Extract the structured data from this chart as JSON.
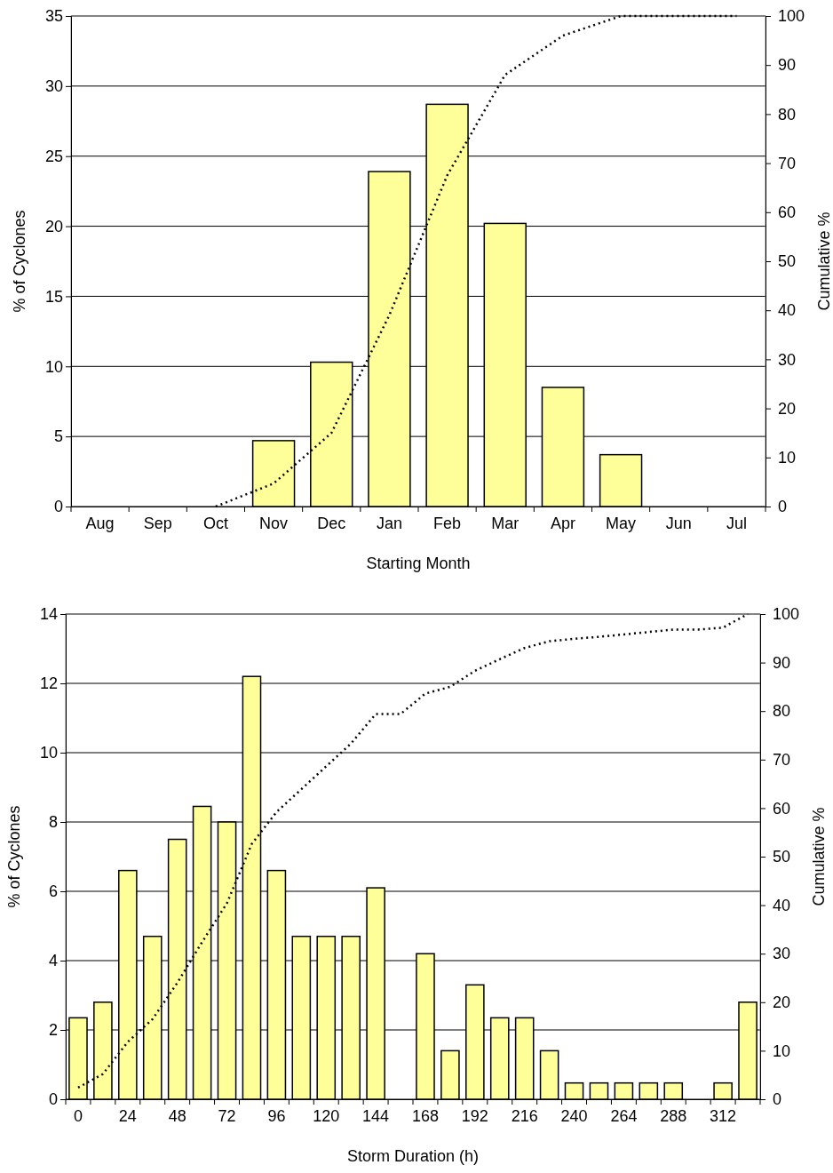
{
  "chart_data": [
    {
      "type": "bar",
      "xlabel": "Starting Month",
      "ylabel": "% of Cyclones",
      "y2label": "Cumulative %",
      "categories": [
        "Aug",
        "Sep",
        "Oct",
        "Nov",
        "Dec",
        "Jan",
        "Feb",
        "Mar",
        "Apr",
        "May",
        "Jun",
        "Jul"
      ],
      "series": [
        {
          "color": "#ffff99",
          "values": [
            null,
            null,
            null,
            4.7,
            10.3,
            23.9,
            28.7,
            20.2,
            8.5,
            3.7,
            null,
            null
          ]
        },
        {
          "type": "line",
          "axis": "y2",
          "color": "#000000",
          "line_style": "dotted",
          "values": [
            null,
            null,
            0,
            4.7,
            15,
            39,
            67.5,
            88,
            96,
            100,
            100,
            100
          ]
        }
      ],
      "ylim": [
        0,
        35
      ],
      "yticks": [
        0,
        5,
        10,
        15,
        20,
        25,
        30,
        35
      ],
      "y2lim": [
        0,
        100
      ],
      "y2ticks": [
        0,
        10,
        20,
        30,
        40,
        50,
        60,
        70,
        80,
        90,
        100
      ],
      "grid": "y",
      "marker": "none"
    },
    {
      "type": "bar",
      "xlabel": "Storm Duration (h)",
      "ylabel": "% of Cyclones",
      "y2label": "Cumulative %",
      "categories": [
        "0",
        null,
        "24",
        null,
        "48",
        null,
        "72",
        null,
        "96",
        null,
        "120",
        null,
        "144",
        null,
        "168",
        null,
        "192",
        null,
        "216",
        null,
        "240",
        null,
        "264",
        null,
        "288",
        null,
        "312",
        null
      ],
      "series": [
        {
          "color": "#ffff99",
          "values": [
            2.35,
            2.8,
            6.6,
            4.7,
            7.5,
            8.45,
            8.0,
            12.2,
            6.6,
            4.7,
            4.7,
            4.7,
            6.1,
            null,
            4.2,
            1.4,
            3.3,
            2.35,
            2.35,
            1.4,
            0.47,
            0.47,
            0.47,
            0.47,
            0.47,
            null,
            0.47,
            2.8
          ]
        },
        {
          "type": "line",
          "axis": "y2",
          "color": "#000000",
          "line_style": "dotted",
          "values": [
            2.4,
            5.2,
            11.8,
            16.5,
            24,
            32.4,
            40.4,
            52.6,
            59.2,
            63.9,
            68.6,
            73.3,
            79.4,
            79.4,
            83.6,
            85,
            88.3,
            90.7,
            93,
            94.4,
            94.9,
            95.3,
            95.8,
            96.3,
            96.8,
            96.8,
            97.2,
            100
          ]
        }
      ],
      "ylim": [
        0,
        14
      ],
      "yticks": [
        0,
        2,
        4,
        6,
        8,
        10,
        12,
        14
      ],
      "y2lim": [
        0,
        100
      ],
      "y2ticks": [
        0,
        10,
        20,
        30,
        40,
        50,
        60,
        70,
        80,
        90,
        100
      ],
      "grid": "y",
      "marker": "none"
    }
  ]
}
